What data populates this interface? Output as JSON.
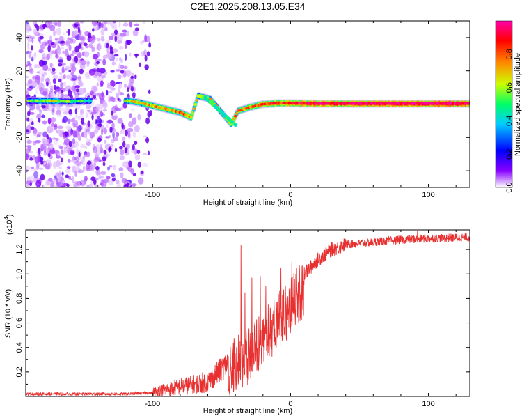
{
  "title": "C2E1.2025.208.13.05.E34",
  "chart_data": [
    {
      "type": "heatmap",
      "xlabel": "Height of straight line (km)",
      "ylabel": "Frequency (Hz)",
      "xlim": [
        -192,
        130
      ],
      "ylim": [
        -50,
        50
      ],
      "x_ticks": [
        "-100",
        "0",
        "100"
      ],
      "y_ticks": [
        "-40",
        "-20",
        "0",
        "20",
        "40"
      ],
      "colorbar": {
        "label": "Normalized spectral amplitude",
        "range": [
          0,
          1
        ],
        "ticks": [
          "0.0",
          "0.2",
          "0.4",
          "0.6",
          "0.8"
        ],
        "colors": [
          "#ffffff",
          "#8800ff",
          "#0000ff",
          "#00ccff",
          "#00ff66",
          "#ccff00",
          "#ff8800",
          "#ff0000",
          "#ff00aa"
        ]
      },
      "noise_region_x": [
        -192,
        -100
      ],
      "signal_trace": [
        {
          "x": -190,
          "y": 2,
          "a": 0.3
        },
        {
          "x": -175,
          "y": 2,
          "a": 0.4
        },
        {
          "x": -160,
          "y": 1.5,
          "a": 0.3
        },
        {
          "x": -150,
          "y": 2,
          "a": 0.25
        },
        {
          "x": -118,
          "y": 2,
          "a": 0.4
        },
        {
          "x": -110,
          "y": 1,
          "a": 0.5
        },
        {
          "x": -100,
          "y": -1,
          "a": 0.55
        },
        {
          "x": -90,
          "y": -3,
          "a": 0.6
        },
        {
          "x": -80,
          "y": -5,
          "a": 0.65
        },
        {
          "x": -72,
          "y": -8,
          "a": 0.55
        },
        {
          "x": -67,
          "y": 5,
          "a": 0.5
        },
        {
          "x": -58,
          "y": 3,
          "a": 0.45
        },
        {
          "x": -50,
          "y": -5,
          "a": 0.5
        },
        {
          "x": -43,
          "y": -12,
          "a": 0.5
        },
        {
          "x": -38,
          "y": -4,
          "a": 0.6
        },
        {
          "x": -30,
          "y": -2,
          "a": 0.65
        },
        {
          "x": -20,
          "y": 0,
          "a": 0.7
        },
        {
          "x": -10,
          "y": 0.5,
          "a": 0.75
        },
        {
          "x": 0,
          "y": 0.5,
          "a": 0.8
        },
        {
          "x": 20,
          "y": 0.3,
          "a": 0.85
        },
        {
          "x": 50,
          "y": 0.3,
          "a": 0.85
        },
        {
          "x": 80,
          "y": 0.3,
          "a": 0.9
        },
        {
          "x": 100,
          "y": 0.3,
          "a": 0.9
        },
        {
          "x": 130,
          "y": 0.3,
          "a": 0.9
        }
      ]
    },
    {
      "type": "line",
      "xlabel": "Height of straight line (km)",
      "ylabel": "SNR (10 * v/v)",
      "y_multiplier": "(x10",
      "y_multiplier_exp": "4",
      "xlim": [
        -192,
        130
      ],
      "ylim": [
        0,
        1.36
      ],
      "x_ticks": [
        "-100",
        "0",
        "100"
      ],
      "y_ticks": [
        "0.2",
        "0.4",
        "0.6",
        "0.8",
        "1.0",
        "1.2"
      ],
      "color": "#e83030",
      "envelope": {
        "x": [
          -192,
          -120,
          -100,
          -80,
          -60,
          -50,
          -42,
          -38,
          -35,
          -30,
          -25,
          -20,
          -15,
          -10,
          -5,
          0,
          5,
          10,
          20,
          30,
          40,
          60,
          80,
          100,
          130
        ],
        "y": [
          0.02,
          0.02,
          0.03,
          0.08,
          0.12,
          0.22,
          0.32,
          0.45,
          0.4,
          0.45,
          0.55,
          0.55,
          0.65,
          0.7,
          0.78,
          0.85,
          0.93,
          1.0,
          1.12,
          1.2,
          1.24,
          1.26,
          1.28,
          1.29,
          1.3
        ]
      },
      "spikes": [
        {
          "x": -36,
          "y": 1.24
        },
        {
          "x": -33,
          "y": 0.85
        },
        {
          "x": -28,
          "y": 0.97
        },
        {
          "x": -22,
          "y": 0.98
        },
        {
          "x": -18,
          "y": 0.9
        },
        {
          "x": -12,
          "y": 0.8
        },
        {
          "x": -7,
          "y": 1.05
        },
        {
          "x": 1,
          "y": 1.1
        },
        {
          "x": 92,
          "y": 1.35
        }
      ]
    }
  ]
}
